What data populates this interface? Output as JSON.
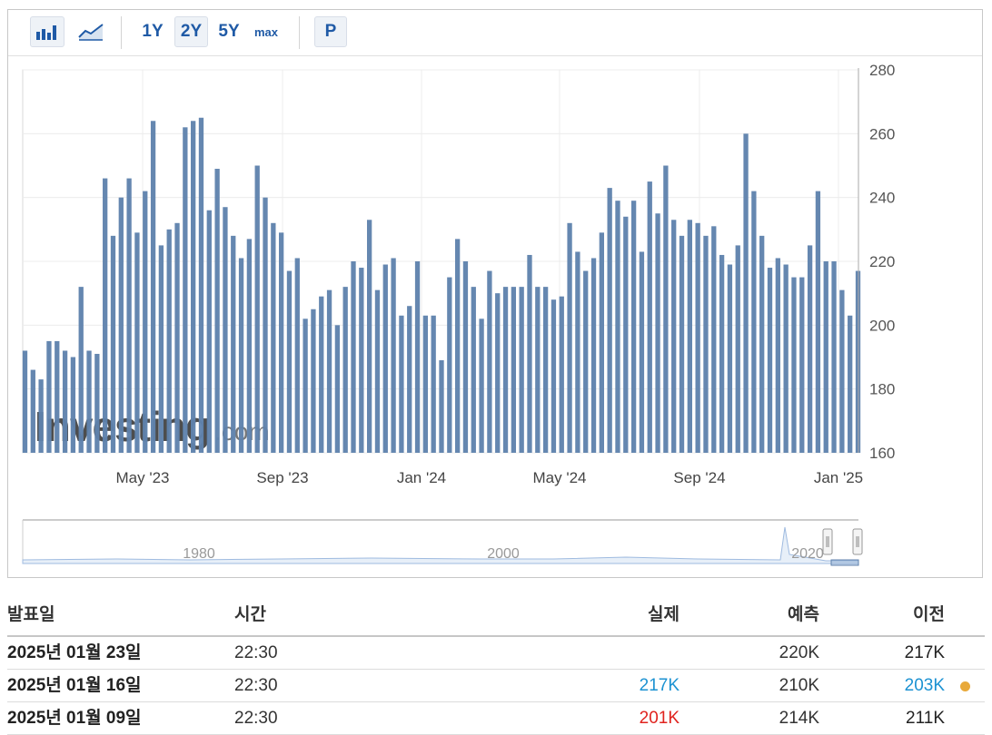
{
  "toolbar": {
    "bar_chart_icon": "bar-chart-icon",
    "line_chart_icon": "line-chart-icon",
    "ranges": [
      "1Y",
      "2Y",
      "5Y",
      "max"
    ],
    "selected_range": "2Y",
    "p_button": "P"
  },
  "watermark": {
    "word": "Investing",
    "suffix": ".com"
  },
  "chart_data": {
    "type": "bar",
    "x_ticks": [
      "May '23",
      "Sep '23",
      "Jan '24",
      "May '24",
      "Sep '24",
      "Jan '25"
    ],
    "y_ticks": [
      "280",
      "260",
      "240",
      "220",
      "200",
      "180",
      "160"
    ],
    "ylim": [
      160,
      280
    ],
    "values": [
      192,
      186,
      183,
      195,
      195,
      192,
      190,
      212,
      192,
      191,
      246,
      228,
      240,
      246,
      229,
      242,
      264,
      225,
      230,
      232,
      262,
      264,
      265,
      236,
      249,
      237,
      228,
      221,
      227,
      250,
      240,
      232,
      229,
      217,
      221,
      202,
      205,
      209,
      211,
      200,
      212,
      220,
      218,
      233,
      211,
      219,
      221,
      203,
      206,
      220,
      203,
      203,
      189,
      215,
      227,
      220,
      212,
      202,
      217,
      210,
      212,
      212,
      212,
      222,
      212,
      212,
      208,
      209,
      232,
      223,
      217,
      221,
      229,
      243,
      239,
      234,
      239,
      223,
      245,
      235,
      250,
      233,
      228,
      233,
      232,
      228,
      231,
      222,
      219,
      225,
      260,
      242,
      228,
      218,
      221,
      219,
      215,
      215,
      225,
      242,
      220,
      220,
      211,
      203,
      217
    ],
    "color": "#5f82ad",
    "navigator": {
      "x_labels": [
        "1980",
        "2000",
        "2020"
      ]
    }
  },
  "table": {
    "headers": {
      "date": "발표일",
      "time": "시간",
      "actual": "실제",
      "forecast": "예측",
      "previous": "이전"
    },
    "rows": [
      {
        "date": "2025년 01월 23일",
        "time": "22:30",
        "actual": "",
        "forecast": "220K",
        "previous": "217K",
        "actual_color": "#333333",
        "previous_color": "#222222",
        "dot": ""
      },
      {
        "date": "2025년 01월 16일",
        "time": "22:30",
        "actual": "217K",
        "forecast": "210K",
        "previous": "203K",
        "actual_color": "#1c92d2",
        "previous_color": "#1c92d2",
        "dot": "#e8a93a"
      },
      {
        "date": "2025년 01월 09일",
        "time": "22:30",
        "actual": "201K",
        "forecast": "214K",
        "previous": "211K",
        "actual_color": "#e0231e",
        "previous_color": "#222222",
        "dot": ""
      }
    ]
  }
}
